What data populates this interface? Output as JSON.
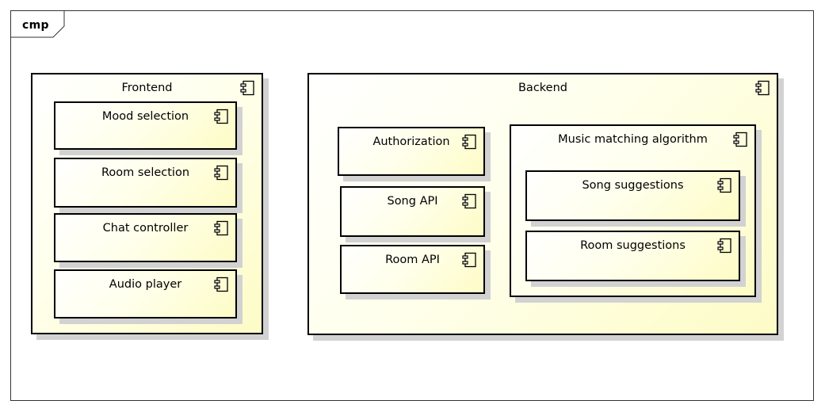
{
  "frame": {
    "label": "cmp"
  },
  "frontend": {
    "title": "Frontend",
    "icon": "component-icon",
    "components": [
      {
        "label": "Mood selection",
        "icon": "component-icon"
      },
      {
        "label": "Room selection",
        "icon": "component-icon"
      },
      {
        "label": "Chat controller",
        "icon": "component-icon"
      },
      {
        "label": "Audio player",
        "icon": "component-icon"
      }
    ]
  },
  "backend": {
    "title": "Backend",
    "icon": "component-icon",
    "components": [
      {
        "label": "Authorization",
        "icon": "component-icon"
      },
      {
        "label": "Song API",
        "icon": "component-icon"
      },
      {
        "label": "Room API",
        "icon": "component-icon"
      }
    ],
    "music_matching": {
      "title": "Music matching algorithm",
      "icon": "component-icon",
      "components": [
        {
          "label": "Song suggestions",
          "icon": "component-icon"
        },
        {
          "label": "Room suggestions",
          "icon": "component-icon"
        }
      ]
    }
  },
  "colors": {
    "border": "#000000",
    "fill_light": "#ffffec",
    "fill_dark": "#fdfcc6",
    "shadow": "#d2d2d2"
  }
}
